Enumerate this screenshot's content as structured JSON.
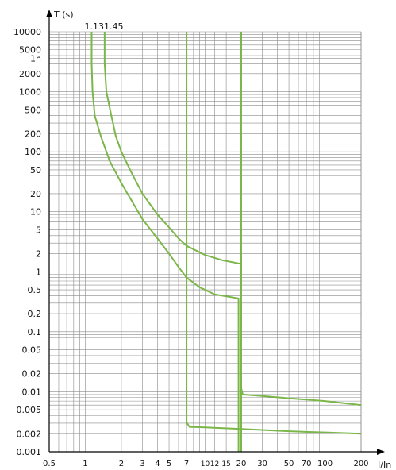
{
  "chart_data": {
    "type": "line",
    "xlabel": "I/In",
    "ylabel": "T (s)",
    "x_scale": "log",
    "y_scale": "log",
    "xlim": [
      0.5,
      200
    ],
    "ylim": [
      0.001,
      10000
    ],
    "grid": true,
    "x_ticks": [
      {
        "v": 0.5,
        "label": "0.5"
      },
      {
        "v": 1,
        "label": "1"
      },
      {
        "v": 2,
        "label": "2"
      },
      {
        "v": 3,
        "label": "3"
      },
      {
        "v": 4,
        "label": "4"
      },
      {
        "v": 5,
        "label": "5"
      },
      {
        "v": 7,
        "label": "7"
      },
      {
        "v": 10,
        "label": "10"
      },
      {
        "v": 12,
        "label": "12"
      },
      {
        "v": 15,
        "label": "15"
      },
      {
        "v": 20,
        "label": "20"
      },
      {
        "v": 30,
        "label": "30"
      },
      {
        "v": 50,
        "label": "50"
      },
      {
        "v": 70,
        "label": "70"
      },
      {
        "v": 100,
        "label": "100"
      },
      {
        "v": 200,
        "label": "200"
      }
    ],
    "y_ticks": [
      {
        "v": 10000,
        "label": "10000"
      },
      {
        "v": 5000,
        "label": "5000"
      },
      {
        "v": 3600,
        "label": "1h"
      },
      {
        "v": 2000,
        "label": "2000"
      },
      {
        "v": 1000,
        "label": "1000"
      },
      {
        "v": 500,
        "label": "500"
      },
      {
        "v": 200,
        "label": "200"
      },
      {
        "v": 100,
        "label": "100"
      },
      {
        "v": 50,
        "label": "50"
      },
      {
        "v": 20,
        "label": "20"
      },
      {
        "v": 10,
        "label": "10"
      },
      {
        "v": 5,
        "label": "5"
      },
      {
        "v": 2,
        "label": "2"
      },
      {
        "v": 1,
        "label": "1"
      },
      {
        "v": 0.5,
        "label": "0.5"
      },
      {
        "v": 0.2,
        "label": "0.2"
      },
      {
        "v": 0.1,
        "label": "0.1"
      },
      {
        "v": 0.05,
        "label": "0.05"
      },
      {
        "v": 0.02,
        "label": "0.02"
      },
      {
        "v": 0.01,
        "label": "0.01"
      },
      {
        "v": 0.005,
        "label": "0.005"
      },
      {
        "v": 0.002,
        "label": "0.002"
      },
      {
        "v": 0.001,
        "label": "0.001"
      }
    ],
    "annotation": "1.131.45",
    "series": [
      {
        "color": "#7ab648",
        "points": [
          [
            1.13,
            10000
          ],
          [
            1.13,
            3000
          ],
          [
            1.15,
            1000
          ],
          [
            1.2,
            400
          ],
          [
            1.35,
            180
          ],
          [
            1.6,
            70
          ],
          [
            2,
            30
          ],
          [
            2.5,
            14
          ],
          [
            3,
            7.5
          ],
          [
            4,
            3.6
          ],
          [
            5,
            2
          ],
          [
            6,
            1.2
          ],
          [
            7,
            0.8
          ],
          [
            9,
            0.55
          ],
          [
            12,
            0.42
          ],
          [
            19,
            0.36
          ],
          [
            19,
            0.001
          ]
        ]
      },
      {
        "color": "#7ab648",
        "points": [
          [
            1.45,
            10000
          ],
          [
            1.45,
            3000
          ],
          [
            1.5,
            1000
          ],
          [
            1.65,
            400
          ],
          [
            1.8,
            180
          ],
          [
            2,
            100
          ],
          [
            2.5,
            40
          ],
          [
            3,
            20
          ],
          [
            4,
            9
          ],
          [
            5,
            5.5
          ],
          [
            6,
            3.6
          ],
          [
            7,
            2.7
          ],
          [
            10,
            1.9
          ],
          [
            14,
            1.55
          ],
          [
            20,
            1.35
          ],
          [
            20,
            0.001
          ]
        ]
      },
      {
        "color": "#7ab648",
        "points": [
          [
            7,
            10000
          ],
          [
            7,
            0.0031
          ],
          [
            7.4,
            0.0026
          ],
          [
            10,
            0.00255
          ],
          [
            20,
            0.0024
          ],
          [
            50,
            0.0022
          ],
          [
            100,
            0.0021
          ],
          [
            200,
            0.002
          ]
        ]
      },
      {
        "color": "#7ab648",
        "points": [
          [
            20,
            10000
          ],
          [
            20,
            0.0115
          ],
          [
            20.6,
            0.009
          ],
          [
            30,
            0.0085
          ],
          [
            50,
            0.0078
          ],
          [
            100,
            0.007
          ],
          [
            200,
            0.006
          ]
        ]
      }
    ]
  }
}
